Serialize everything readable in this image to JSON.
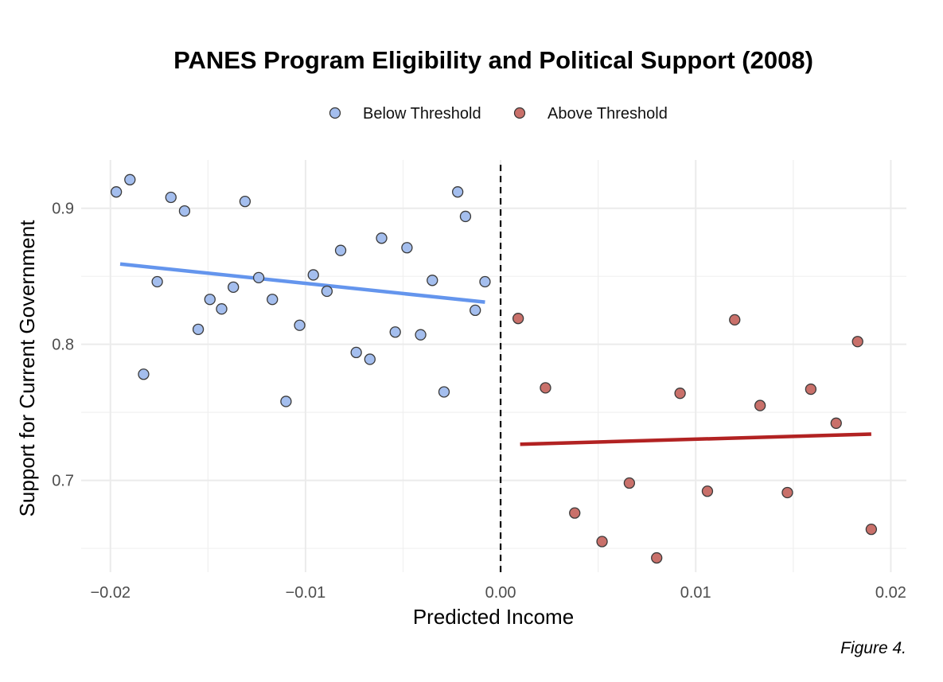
{
  "chart_data": {
    "type": "scatter",
    "title": "PANES Program Eligibility and Political Support (2008)",
    "xlabel": "Predicted Income",
    "ylabel": "Support for Current Government",
    "caption": "Figure 4.",
    "xlim": [
      -0.0215,
      0.0208
    ],
    "ylim": [
      0.6325,
      0.9355
    ],
    "x_ticks": [
      -0.02,
      -0.01,
      0.0,
      0.01,
      0.02
    ],
    "x_tick_labels": [
      "−0.02",
      "−0.01",
      "0.00",
      "0.01",
      "0.02"
    ],
    "y_ticks": [
      0.7,
      0.8,
      0.9
    ],
    "y_tick_labels": [
      "0.7",
      "0.8",
      "0.9"
    ],
    "grid": true,
    "legend_position": "top",
    "threshold_x": 0.0,
    "series": [
      {
        "name": "Below Threshold",
        "color": "#6495ED",
        "point_fill": "#A4BEEE",
        "points": [
          [
            -0.0197,
            0.912
          ],
          [
            -0.019,
            0.921
          ],
          [
            -0.0183,
            0.778
          ],
          [
            -0.0176,
            0.846
          ],
          [
            -0.0169,
            0.908
          ],
          [
            -0.0162,
            0.898
          ],
          [
            -0.0155,
            0.811
          ],
          [
            -0.0149,
            0.833
          ],
          [
            -0.0143,
            0.826
          ],
          [
            -0.0137,
            0.842
          ],
          [
            -0.0131,
            0.905
          ],
          [
            -0.0124,
            0.849
          ],
          [
            -0.0117,
            0.833
          ],
          [
            -0.011,
            0.758
          ],
          [
            -0.0103,
            0.814
          ],
          [
            -0.0096,
            0.851
          ],
          [
            -0.0089,
            0.839
          ],
          [
            -0.0082,
            0.869
          ],
          [
            -0.0074,
            0.794
          ],
          [
            -0.0067,
            0.789
          ],
          [
            -0.0061,
            0.878
          ],
          [
            -0.0054,
            0.809
          ],
          [
            -0.0048,
            0.871
          ],
          [
            -0.0041,
            0.807
          ],
          [
            -0.0035,
            0.847
          ],
          [
            -0.0029,
            0.765
          ],
          [
            -0.0022,
            0.912
          ],
          [
            -0.0018,
            0.894
          ],
          [
            -0.0013,
            0.825
          ],
          [
            -0.0008,
            0.846
          ]
        ],
        "fit_line": [
          [
            -0.0195,
            0.859
          ],
          [
            -0.0008,
            0.831
          ]
        ]
      },
      {
        "name": "Above Threshold",
        "color": "#B22222",
        "point_fill": "#C9706A",
        "points": [
          [
            0.0009,
            0.819
          ],
          [
            0.0023,
            0.768
          ],
          [
            0.0038,
            0.676
          ],
          [
            0.0052,
            0.655
          ],
          [
            0.0066,
            0.698
          ],
          [
            0.008,
            0.643
          ],
          [
            0.0092,
            0.764
          ],
          [
            0.0106,
            0.692
          ],
          [
            0.012,
            0.818
          ],
          [
            0.0133,
            0.755
          ],
          [
            0.0147,
            0.691
          ],
          [
            0.0159,
            0.767
          ],
          [
            0.0172,
            0.742
          ],
          [
            0.0183,
            0.802
          ],
          [
            0.019,
            0.664
          ]
        ],
        "fit_line": [
          [
            0.001,
            0.7265
          ],
          [
            0.019,
            0.734
          ]
        ]
      }
    ]
  }
}
